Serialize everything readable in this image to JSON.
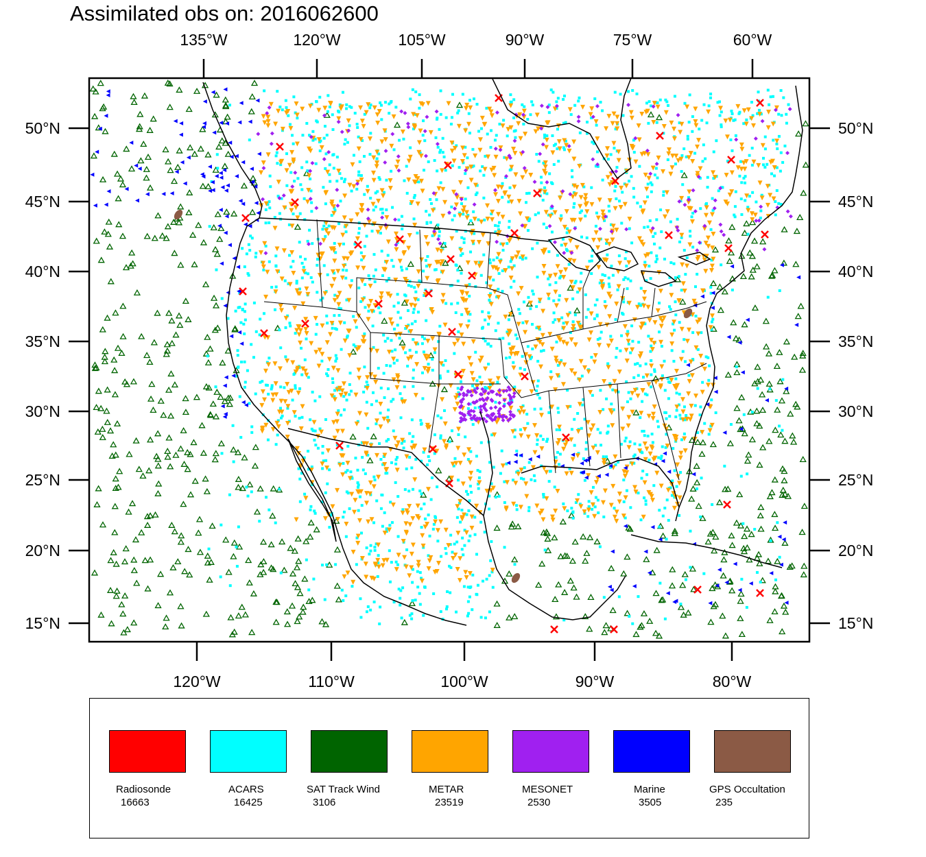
{
  "title": "Assimilated obs on: 2016062600",
  "axes": {
    "top_lon_labels": [
      "135°W",
      "120°W",
      "105°W",
      "90°W",
      "75°W",
      "60°W"
    ],
    "bottom_lon_labels": [
      "120°W",
      "110°W",
      "100°W",
      "90°W",
      "80°W"
    ],
    "lat_labels": [
      "50°N",
      "45°N",
      "40°N",
      "35°N",
      "30°N",
      "25°N",
      "20°N",
      "15°N"
    ]
  },
  "map": {
    "projection": "Lambert conformal",
    "colors": {
      "land_outline": "#000000",
      "background": "#ffffff"
    }
  },
  "legend": {
    "items": [
      {
        "name": "Radiosonde",
        "count": "16663",
        "color": "#ff0000"
      },
      {
        "name": "ACARS",
        "count": "16425",
        "color": "#00ffff"
      },
      {
        "name": "SAT Track Wind",
        "count": "3106",
        "color": "#006400"
      },
      {
        "name": "METAR",
        "count": "23519",
        "color": "#ffa500"
      },
      {
        "name": "MESONET",
        "count": "2530",
        "color": "#a020f0"
      },
      {
        "name": "Marine",
        "count": "3505",
        "color": "#0000ff"
      },
      {
        "name": "GPS Occultation",
        "count": "235",
        "color": "#8b5a45"
      }
    ]
  }
}
